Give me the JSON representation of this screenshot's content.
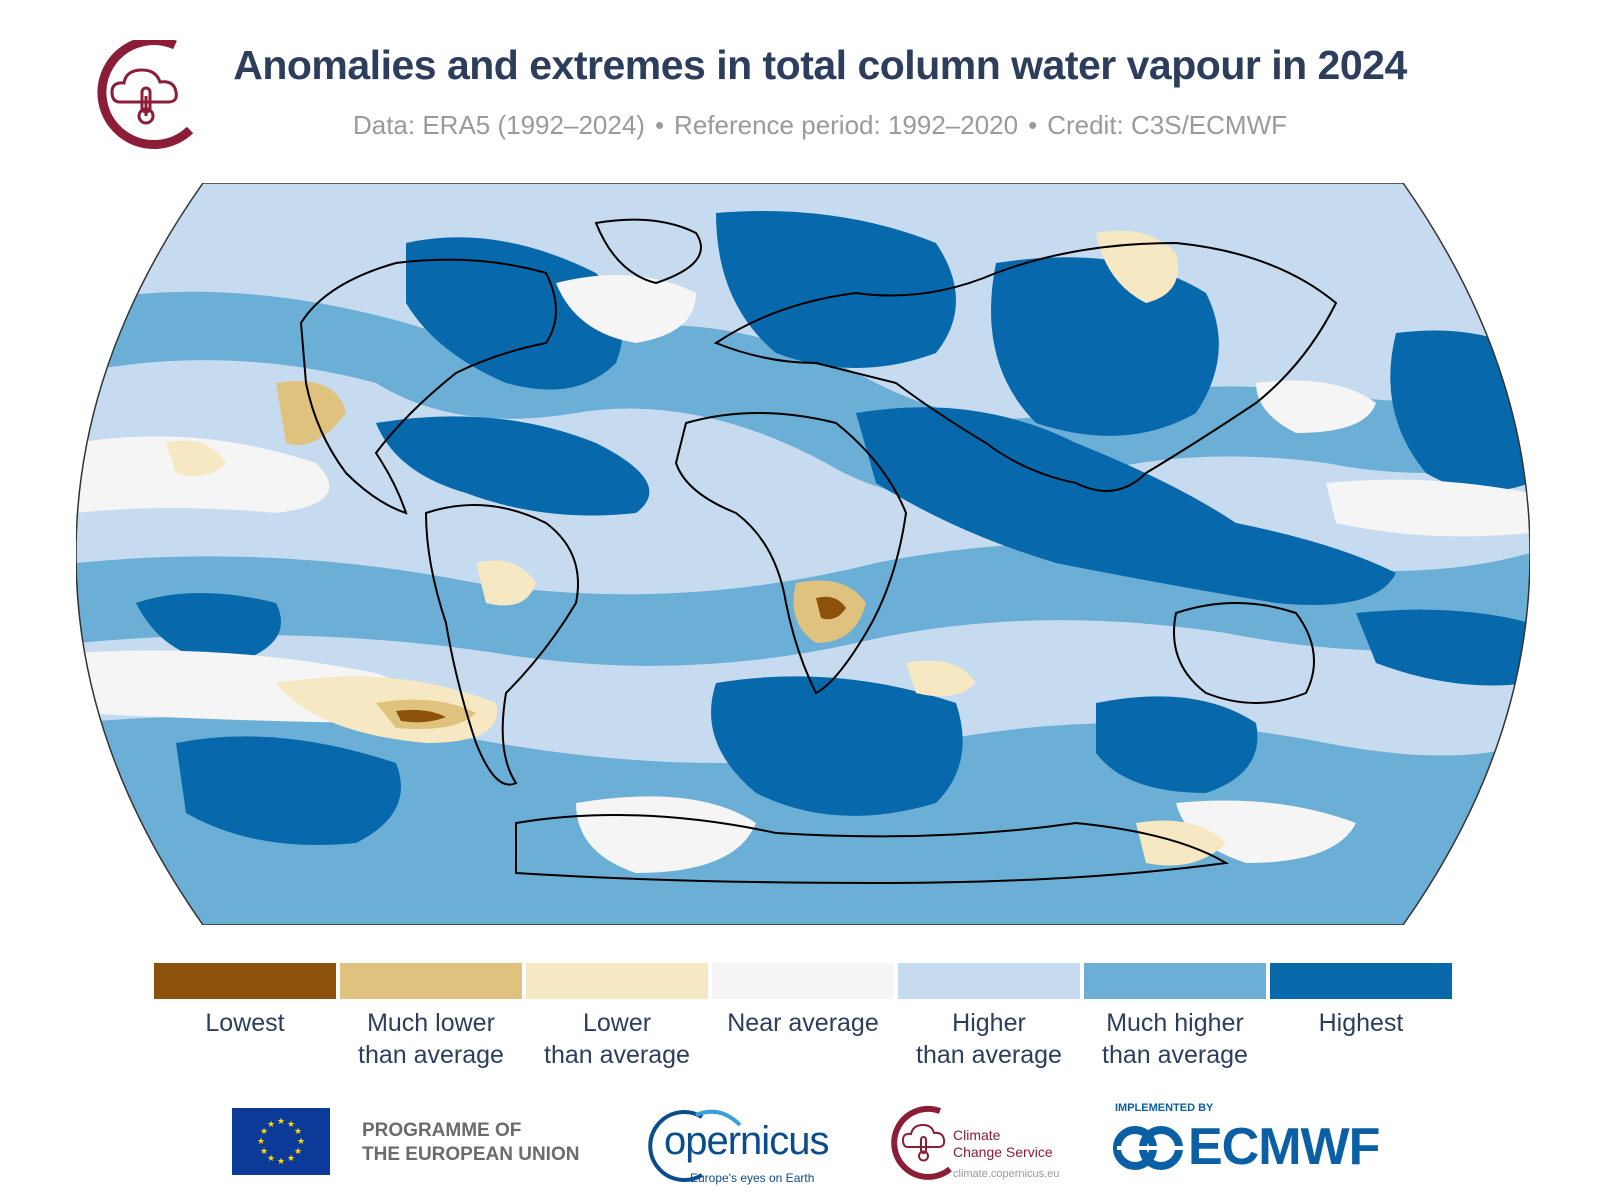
{
  "header": {
    "title": "Anomalies and extremes in total column water vapour in 2024",
    "subtitle_parts": [
      "Data: ERA5 (1992–2024)",
      "Reference period: 1992–2020",
      "Credit: C3S/ECMWF"
    ],
    "separator": "•"
  },
  "map": {
    "projection": "Robinson",
    "variable": "total column water vapour",
    "year": "2024"
  },
  "legend": {
    "items": [
      {
        "lines": [
          "Lowest"
        ],
        "color": "#8c510a"
      },
      {
        "lines": [
          "Much lower",
          "than average"
        ],
        "color": "#dfc27d"
      },
      {
        "lines": [
          "Lower",
          "than average"
        ],
        "color": "#f6e8c3"
      },
      {
        "lines": [
          "Near average"
        ],
        "color": "#f5f5f5"
      },
      {
        "lines": [
          "Higher",
          "than average"
        ],
        "color": "#c6dbef"
      },
      {
        "lines": [
          "Much higher",
          "than average"
        ],
        "color": "#6baed6"
      },
      {
        "lines": [
          "Highest"
        ],
        "color": "#0868ac"
      }
    ]
  },
  "footer": {
    "eu_line1": "PROGRAMME OF",
    "eu_line2": "THE EUROPEAN UNION",
    "copernicus_name": "opernicus",
    "copernicus_tagline": "Europe's eyes on Earth",
    "c3s_line1": "Climate",
    "c3s_line2": "Change Service",
    "c3s_url": "climate.copernicus.eu",
    "ecmwf_small": "IMPLEMENTED BY",
    "ecmwf_name": "ECMWF"
  },
  "colors": {
    "brand_red": "#8b1d36",
    "title_navy": "#2d3e5c",
    "eu_blue": "#0b3a99",
    "eu_star": "#ffdd00",
    "copernicus_blue": "#0b4d8c",
    "ecmwf_blue": "#0b5fa5"
  }
}
